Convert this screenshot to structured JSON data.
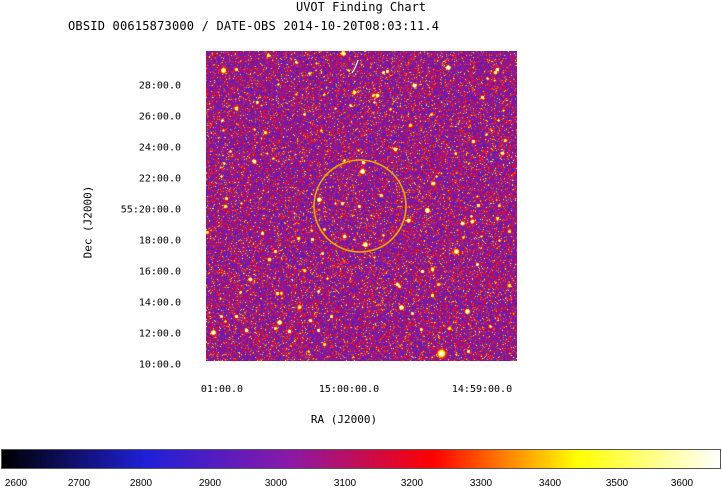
{
  "header": {
    "title": "UVOT Finding Chart",
    "subtitle": "OBSID 00615873000 / DATE-OBS 2014-10-20T08:03:11.4"
  },
  "axes": {
    "ylabel": "Dec (J2000)",
    "xlabel": "RA (J2000)",
    "yticks": [
      "28:00.0",
      "26:00.0",
      "24:00.0",
      "22:00.0",
      "55:20:00.0",
      "18:00.0",
      "16:00.0",
      "14:00.0",
      "12:00.0",
      "10:00.0"
    ],
    "xticks": [
      "01:00.0",
      "15:00:00.0",
      "14:59:00.0"
    ]
  },
  "image": {
    "colormap": [
      "#000000",
      "#2020d8",
      "#8a1aa8",
      "#ff0000",
      "#ffff00",
      "#ffffff"
    ],
    "region_color": "#e8a800"
  },
  "colorbar": {
    "ticks": [
      "2600",
      "2700",
      "2800",
      "2900",
      "3000",
      "3100",
      "3200",
      "3300",
      "3400",
      "3500",
      "3600"
    ],
    "min": 2600,
    "max": 3650
  }
}
